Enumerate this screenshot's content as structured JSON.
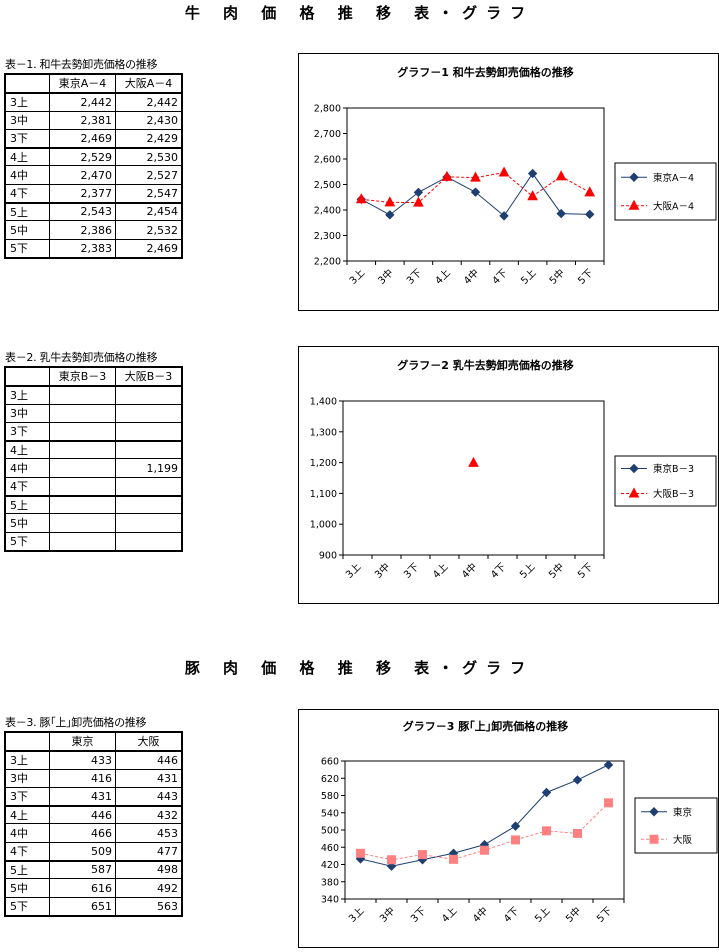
{
  "sections": {
    "beef_title": "牛 肉 価 格 推 移 表・グラフ",
    "pork_title": "豚 肉 価 格 推 移 表・グラフ"
  },
  "table1": {
    "caption": "表－1. 和牛去勢卸売価格の推移",
    "headers": [
      "",
      "東京A－4",
      "大阪A－4"
    ],
    "rows": [
      [
        "3上",
        "2,442",
        "2,442"
      ],
      [
        "3中",
        "2,381",
        "2,430"
      ],
      [
        "3下",
        "2,469",
        "2,429"
      ],
      [
        "4上",
        "2,529",
        "2,530"
      ],
      [
        "4中",
        "2,470",
        "2,527"
      ],
      [
        "4下",
        "2,377",
        "2,547"
      ],
      [
        "5上",
        "2,543",
        "2,454"
      ],
      [
        "5中",
        "2,386",
        "2,532"
      ],
      [
        "5下",
        "2,383",
        "2,469"
      ]
    ]
  },
  "table2": {
    "caption": "表－2. 乳牛去勢卸売価格の推移",
    "headers": [
      "",
      "東京B－3",
      "大阪B－3"
    ],
    "rows": [
      [
        "3上",
        "",
        ""
      ],
      [
        "3中",
        "",
        ""
      ],
      [
        "3下",
        "",
        ""
      ],
      [
        "4上",
        "",
        ""
      ],
      [
        "4中",
        "",
        "1,199"
      ],
      [
        "4下",
        "",
        ""
      ],
      [
        "5上",
        "",
        ""
      ],
      [
        "5中",
        "",
        ""
      ],
      [
        "5下",
        "",
        ""
      ]
    ]
  },
  "table3": {
    "caption": "表－3. 豚｢上｣卸売価格の推移",
    "headers": [
      "",
      "東京",
      "大阪"
    ],
    "rows": [
      [
        "3上",
        "433",
        "446"
      ],
      [
        "3中",
        "416",
        "431"
      ],
      [
        "3下",
        "431",
        "443"
      ],
      [
        "4上",
        "446",
        "432"
      ],
      [
        "4中",
        "466",
        "453"
      ],
      [
        "4下",
        "509",
        "477"
      ],
      [
        "5上",
        "587",
        "498"
      ],
      [
        "5中",
        "616",
        "492"
      ],
      [
        "5下",
        "651",
        "563"
      ]
    ]
  },
  "chart_data": [
    {
      "type": "line",
      "title": "グラフ－1 和牛去勢卸売価格の推移",
      "categories": [
        "3上",
        "3中",
        "3下",
        "4上",
        "4中",
        "4下",
        "5上",
        "5中",
        "5下"
      ],
      "ylim": [
        2200,
        2800
      ],
      "ystep": 100,
      "yticks": [
        "2,200",
        "2,300",
        "2,400",
        "2,500",
        "2,600",
        "2,700",
        "2,800"
      ],
      "grid": false,
      "legend": "right",
      "series": [
        {
          "name": "東京A－4",
          "values": [
            2442,
            2381,
            2469,
            2529,
            2470,
            2377,
            2543,
            2386,
            2383
          ],
          "color": "#1f3f73",
          "marker": "diamond",
          "dash": false
        },
        {
          "name": "大阪A－4",
          "values": [
            2442,
            2430,
            2429,
            2530,
            2527,
            2547,
            2454,
            2532,
            2469
          ],
          "color": "#ff0000",
          "marker": "triangle",
          "dash": true
        }
      ]
    },
    {
      "type": "line",
      "title": "グラフ－2 乳牛去勢卸売価格の推移",
      "categories": [
        "3上",
        "3中",
        "3下",
        "4上",
        "4中",
        "4下",
        "5上",
        "5中",
        "5下"
      ],
      "ylim": [
        900,
        1400
      ],
      "ystep": 100,
      "yticks": [
        "900",
        "1,000",
        "1,100",
        "1,200",
        "1,300",
        "1,400"
      ],
      "grid": false,
      "legend": "right",
      "series": [
        {
          "name": "東京B－3",
          "values": [
            null,
            null,
            null,
            null,
            null,
            null,
            null,
            null,
            null
          ],
          "color": "#1f3f73",
          "marker": "diamond",
          "dash": false
        },
        {
          "name": "大阪B－3",
          "values": [
            null,
            null,
            null,
            null,
            1199,
            null,
            null,
            null,
            null
          ],
          "color": "#ff0000",
          "marker": "triangle",
          "dash": true
        }
      ]
    },
    {
      "type": "line",
      "title": "グラフ－3 豚｢上｣卸売価格の推移",
      "categories": [
        "3上",
        "3中",
        "3下",
        "4上",
        "4中",
        "4下",
        "5上",
        "5中",
        "5下"
      ],
      "ylim": [
        340,
        660
      ],
      "ystep": 40,
      "yticks": [
        "340",
        "380",
        "420",
        "460",
        "500",
        "540",
        "580",
        "620",
        "660"
      ],
      "grid": false,
      "legend": "right",
      "series": [
        {
          "name": "東京",
          "values": [
            433,
            416,
            431,
            446,
            466,
            509,
            587,
            616,
            651
          ],
          "color": "#1f3f73",
          "marker": "diamond",
          "dash": false
        },
        {
          "name": "大阪",
          "values": [
            446,
            431,
            443,
            432,
            453,
            477,
            498,
            492,
            563
          ],
          "color": "#ff8080",
          "marker": "square",
          "dash": true
        }
      ]
    }
  ]
}
